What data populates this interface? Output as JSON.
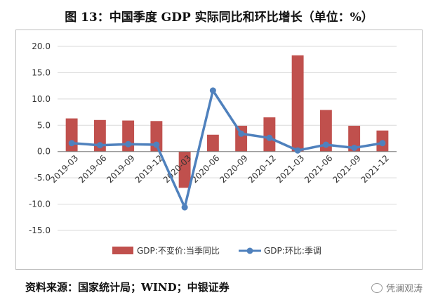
{
  "title": "图 13：中国季度 GDP 实际同比和环比增长（单位：%）",
  "source": "资料来源：国家统计局；WIND；中银证券",
  "watermark": "凭澜观涛",
  "colors": {
    "bar": "#c0504d",
    "line": "#4f81bd",
    "grid": "#d9d9d9"
  },
  "chart_data": {
    "type": "bar",
    "title": "图 13：中国季度 GDP 实际同比和环比增长（单位：%）",
    "categories": [
      "2019-03",
      "2019-06",
      "2019-09",
      "2019-12",
      "2020-03",
      "2020-06",
      "2020-09",
      "2020-12",
      "2021-03",
      "2021-06",
      "2021-09",
      "2021-12"
    ],
    "ylim": [
      -15,
      20
    ],
    "yticks": [
      "20.0",
      "15.0",
      "10.0",
      "5.0",
      "0.0",
      "-5.0",
      "-10.0",
      "-15.0"
    ],
    "ytick_values": [
      20,
      15,
      10,
      5,
      0,
      -5,
      -10,
      -15
    ],
    "grid": true,
    "legend_position": "bottom",
    "series": [
      {
        "name": "GDP:不变价:当季同比",
        "kind": "bar",
        "values": [
          6.3,
          6.0,
          5.9,
          5.8,
          -6.9,
          3.2,
          4.9,
          6.5,
          18.3,
          7.9,
          4.9,
          4.0
        ]
      },
      {
        "name": "GDP:环比:季调",
        "kind": "line",
        "values": [
          1.6,
          1.2,
          1.4,
          1.3,
          -10.6,
          11.6,
          3.4,
          2.6,
          0.2,
          1.3,
          0.7,
          1.6
        ]
      }
    ]
  }
}
